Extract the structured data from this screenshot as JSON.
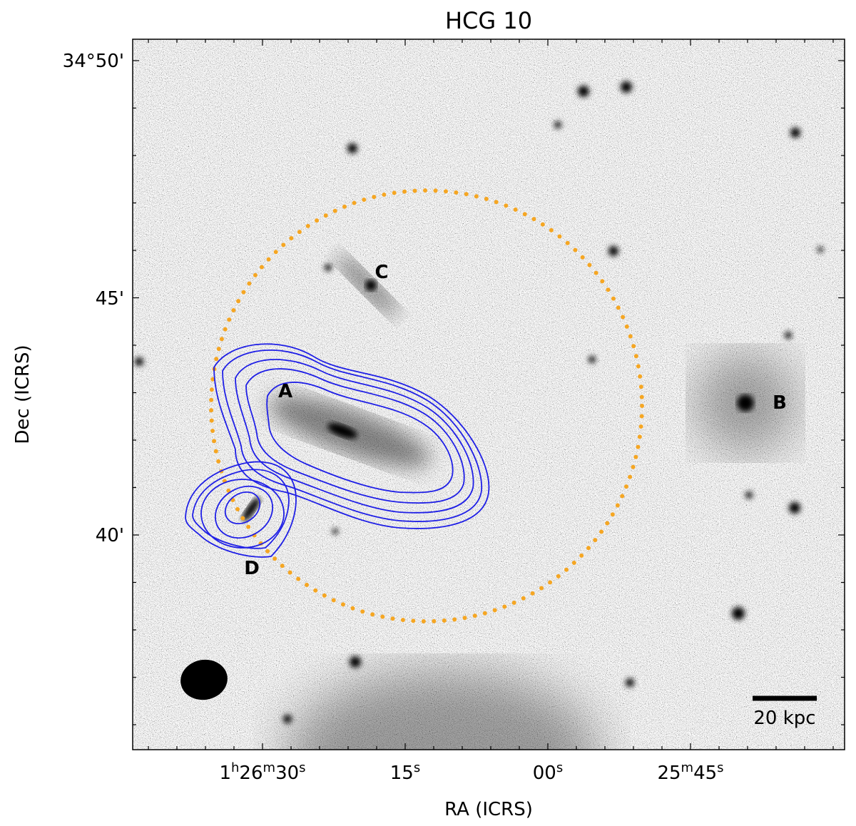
{
  "title": "HCG 10",
  "x_axis": {
    "label": "RA (ICRS)",
    "ticks": [
      [
        "1",
        "h",
        "26",
        "m",
        "30",
        "s"
      ],
      [
        "15",
        "s"
      ],
      [
        "00",
        "s"
      ],
      [
        "25",
        "m",
        "45",
        "s"
      ]
    ]
  },
  "y_axis": {
    "label": "Dec (ICRS)",
    "ticks": [
      "34°50'",
      "45'",
      "40'"
    ]
  },
  "galaxies": [
    "A",
    "B",
    "C",
    "D"
  ],
  "scale_bar": "20 kpc"
}
